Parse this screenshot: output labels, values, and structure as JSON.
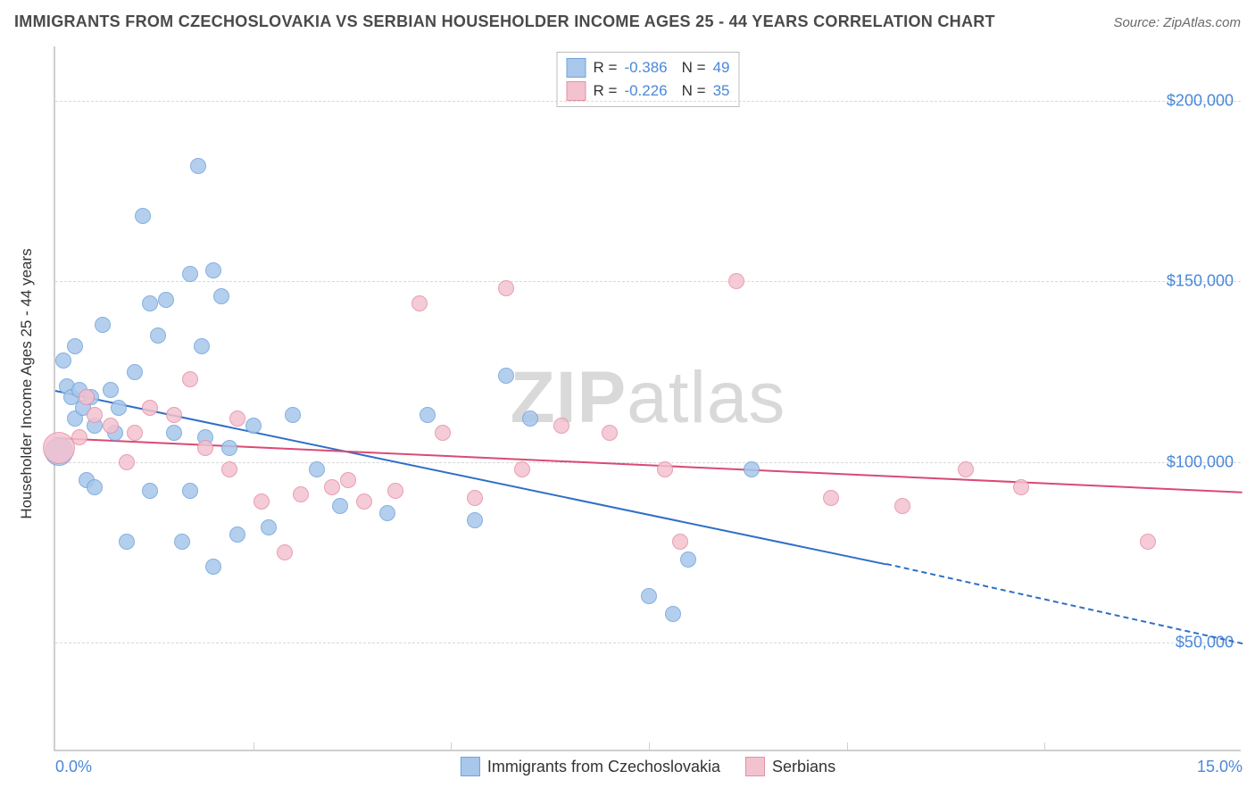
{
  "title": "IMMIGRANTS FROM CZECHOSLOVAKIA VS SERBIAN HOUSEHOLDER INCOME AGES 25 - 44 YEARS CORRELATION CHART",
  "source": "Source: ZipAtlas.com",
  "watermark_a": "ZIP",
  "watermark_b": "atlas",
  "chart": {
    "type": "scatter",
    "background_color": "#ffffff",
    "grid_color": "#d8d8d8",
    "axis_color": "#cfcfcf",
    "tick_label_color": "#4a88d8",
    "tick_fontsize": 18,
    "title_fontsize": 18,
    "title_color": "#4a4a4a",
    "xlim": [
      0,
      15
    ],
    "ylim": [
      20000,
      215000
    ],
    "x_ticks_minor": [
      2.5,
      5.0,
      7.5,
      10.0,
      12.5
    ],
    "x_tick_labels": [
      {
        "v": 0,
        "label": "0.0%"
      },
      {
        "v": 15,
        "label": "15.0%"
      }
    ],
    "y_ticks": [
      {
        "v": 50000,
        "label": "$50,000"
      },
      {
        "v": 100000,
        "label": "$100,000"
      },
      {
        "v": 150000,
        "label": "$150,000"
      },
      {
        "v": 200000,
        "label": "$200,000"
      }
    ],
    "y_axis_title": "Householder Income Ages 25 - 44 years",
    "marker_radius": 9,
    "marker_border_width": 1.5,
    "marker_fill_opacity": 0.35,
    "series": [
      {
        "id": "czech",
        "name": "Immigrants from Czechoslovakia",
        "color_border": "#6fa3dd",
        "color_fill": "#a8c7ea",
        "R": "-0.386",
        "N": "49",
        "trend": {
          "x1": 0,
          "y1": 120000,
          "x2": 10.5,
          "y2": 72000,
          "dash_from_x": 10.5,
          "dash_to_x": 15,
          "dash_to_y": 50000,
          "color": "#2f6fc7",
          "width": 2
        },
        "points": [
          {
            "x": 0.05,
            "y": 103000,
            "r": 16
          },
          {
            "x": 0.1,
            "y": 128000
          },
          {
            "x": 0.15,
            "y": 121000
          },
          {
            "x": 0.2,
            "y": 118000
          },
          {
            "x": 0.25,
            "y": 112000
          },
          {
            "x": 0.25,
            "y": 132000
          },
          {
            "x": 0.3,
            "y": 120000
          },
          {
            "x": 0.35,
            "y": 115000
          },
          {
            "x": 0.4,
            "y": 95000
          },
          {
            "x": 0.45,
            "y": 118000
          },
          {
            "x": 0.5,
            "y": 110000
          },
          {
            "x": 0.5,
            "y": 93000
          },
          {
            "x": 0.6,
            "y": 138000
          },
          {
            "x": 0.7,
            "y": 120000
          },
          {
            "x": 0.75,
            "y": 108000
          },
          {
            "x": 0.8,
            "y": 115000
          },
          {
            "x": 0.9,
            "y": 78000
          },
          {
            "x": 1.0,
            "y": 125000
          },
          {
            "x": 1.1,
            "y": 168000
          },
          {
            "x": 1.2,
            "y": 144000
          },
          {
            "x": 1.2,
            "y": 92000
          },
          {
            "x": 1.3,
            "y": 135000
          },
          {
            "x": 1.4,
            "y": 145000
          },
          {
            "x": 1.5,
            "y": 108000
          },
          {
            "x": 1.6,
            "y": 78000
          },
          {
            "x": 1.7,
            "y": 152000
          },
          {
            "x": 1.7,
            "y": 92000
          },
          {
            "x": 1.8,
            "y": 182000
          },
          {
            "x": 1.85,
            "y": 132000
          },
          {
            "x": 1.9,
            "y": 107000
          },
          {
            "x": 2.0,
            "y": 153000
          },
          {
            "x": 2.0,
            "y": 71000
          },
          {
            "x": 2.1,
            "y": 146000
          },
          {
            "x": 2.2,
            "y": 104000
          },
          {
            "x": 2.3,
            "y": 80000
          },
          {
            "x": 2.5,
            "y": 110000
          },
          {
            "x": 2.7,
            "y": 82000
          },
          {
            "x": 3.0,
            "y": 113000
          },
          {
            "x": 3.3,
            "y": 98000
          },
          {
            "x": 3.6,
            "y": 88000
          },
          {
            "x": 4.2,
            "y": 86000
          },
          {
            "x": 4.7,
            "y": 113000
          },
          {
            "x": 5.3,
            "y": 84000
          },
          {
            "x": 5.7,
            "y": 124000
          },
          {
            "x": 6.0,
            "y": 112000
          },
          {
            "x": 7.5,
            "y": 63000
          },
          {
            "x": 7.8,
            "y": 58000
          },
          {
            "x": 8.0,
            "y": 73000
          },
          {
            "x": 8.8,
            "y": 98000
          }
        ]
      },
      {
        "id": "serbian",
        "name": "Serbians",
        "color_border": "#e58fa5",
        "color_fill": "#f3c2cf",
        "R": "-0.226",
        "N": "35",
        "trend": {
          "x1": 0,
          "y1": 107000,
          "x2": 15,
          "y2": 92000,
          "color": "#d94a74",
          "width": 2
        },
        "points": [
          {
            "x": 0.05,
            "y": 104000,
            "r": 18
          },
          {
            "x": 0.3,
            "y": 107000
          },
          {
            "x": 0.4,
            "y": 118000
          },
          {
            "x": 0.5,
            "y": 113000
          },
          {
            "x": 0.7,
            "y": 110000
          },
          {
            "x": 0.9,
            "y": 100000
          },
          {
            "x": 1.0,
            "y": 108000
          },
          {
            "x": 1.2,
            "y": 115000
          },
          {
            "x": 1.5,
            "y": 113000
          },
          {
            "x": 1.7,
            "y": 123000
          },
          {
            "x": 1.9,
            "y": 104000
          },
          {
            "x": 2.2,
            "y": 98000
          },
          {
            "x": 2.3,
            "y": 112000
          },
          {
            "x": 2.6,
            "y": 89000
          },
          {
            "x": 2.9,
            "y": 75000
          },
          {
            "x": 3.1,
            "y": 91000
          },
          {
            "x": 3.5,
            "y": 93000
          },
          {
            "x": 3.7,
            "y": 95000
          },
          {
            "x": 3.9,
            "y": 89000
          },
          {
            "x": 4.3,
            "y": 92000
          },
          {
            "x": 4.6,
            "y": 144000
          },
          {
            "x": 4.9,
            "y": 108000
          },
          {
            "x": 5.3,
            "y": 90000
          },
          {
            "x": 5.7,
            "y": 148000
          },
          {
            "x": 5.9,
            "y": 98000
          },
          {
            "x": 6.4,
            "y": 110000
          },
          {
            "x": 7.0,
            "y": 108000
          },
          {
            "x": 7.7,
            "y": 98000
          },
          {
            "x": 7.9,
            "y": 78000
          },
          {
            "x": 8.6,
            "y": 150000
          },
          {
            "x": 9.8,
            "y": 90000
          },
          {
            "x": 10.7,
            "y": 88000
          },
          {
            "x": 12.2,
            "y": 93000
          },
          {
            "x": 13.8,
            "y": 78000
          },
          {
            "x": 11.5,
            "y": 98000
          }
        ]
      }
    ]
  }
}
